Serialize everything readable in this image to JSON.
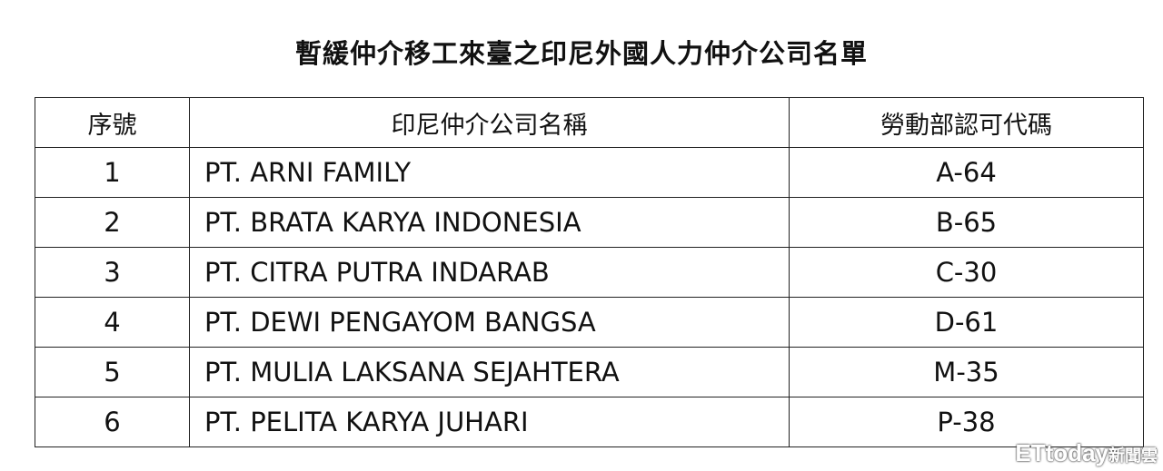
{
  "title": "暫緩仲介移工來臺之印尼外國人力仲介公司名單",
  "table": {
    "headers": [
      "序號",
      "印尼仲介公司名稱",
      "勞動部認可代碼"
    ],
    "rows": [
      [
        "1",
        "PT. ARNI FAMILY",
        "A-64"
      ],
      [
        "2",
        "PT. BRATA KARYA INDONESIA",
        "B-65"
      ],
      [
        "3",
        "PT. CITRA PUTRA INDARAB",
        "C-30"
      ],
      [
        "4",
        "PT. DEWI PENGAYOM BANGSA",
        "D-61"
      ],
      [
        "5",
        "PT. MULIA LAKSANA SEJAHTERA",
        "M-35"
      ],
      [
        "6",
        "PT. PELITA KARYA JUHARI",
        "P-38"
      ]
    ]
  },
  "watermark": {
    "brand": "ETtoday",
    "suffix": "新聞雲"
  }
}
